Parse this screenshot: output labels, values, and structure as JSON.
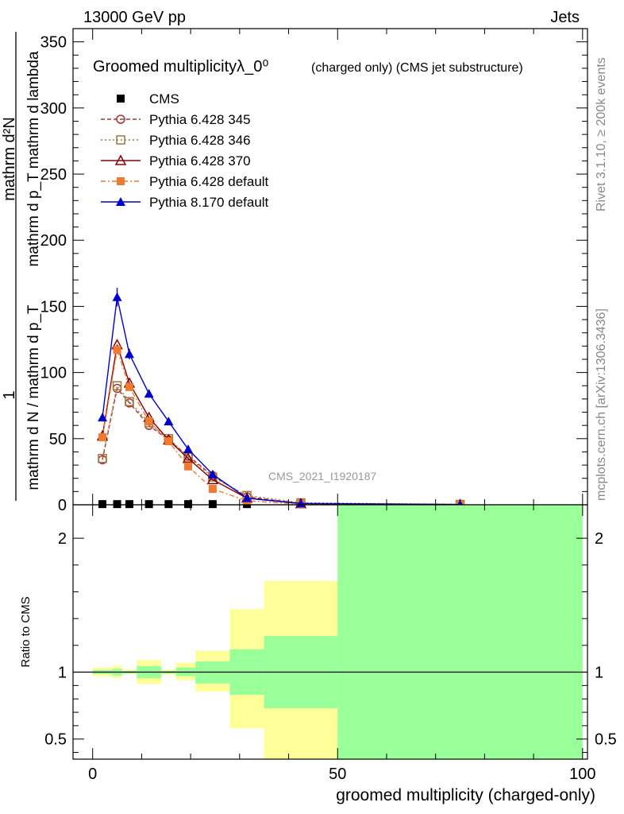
{
  "header": {
    "left": "13000 GeV pp",
    "right": "Jets"
  },
  "side_labels": {
    "rivet": "Rivet 3.1.10, ≥ 200k events",
    "mcplots": "mcplots.cern.ch [arXiv:1306.3436]"
  },
  "watermark": "CMS_2021_I1920187",
  "chart_data": [
    {
      "type": "line",
      "panel": "main",
      "title": "Groomed multiplicityλ_0⁰",
      "subtitle": "(charged only) (CMS jet substructure)",
      "xlabel": "groomed multiplicity (charged-only)",
      "ylabel": "1 / (mathrm d N / mathrm d p_T mathrm d p_T mathrm d lambda) · mathrm dN",
      "ylabel_numerator": "mathrm d²N",
      "ylabel_denominator": "mathrm d p_T mathrm d lambda",
      "ylabel_prefactor": "1",
      "ylabel_prefactor_den": "mathrm d N / mathrm d p_T",
      "xlim": [
        -4,
        101
      ],
      "ylim": [
        0,
        360
      ],
      "xticks": [
        0,
        50,
        100
      ],
      "yticks": [
        0,
        50,
        100,
        150,
        200,
        250,
        300,
        350
      ],
      "legend_position": "top-left",
      "series": [
        {
          "name": "CMS",
          "color": "#000000",
          "marker": "square-filled",
          "line": "none",
          "x": [
            2,
            5,
            7.5,
            11.5,
            15.5,
            19.5,
            24.5,
            31.5,
            42.5,
            75
          ],
          "y": [
            0.5,
            0.5,
            0.5,
            0.5,
            0.5,
            0.5,
            0.5,
            0.5,
            0.5,
            0.5
          ]
        },
        {
          "name": "Pythia 6.428 345",
          "color": "#b03030",
          "marker": "circle-open",
          "line": "dashed",
          "x": [
            2,
            5,
            7.5,
            11.5,
            15.5,
            19.5,
            24.5,
            31.5,
            42.5,
            75
          ],
          "y": [
            34,
            88,
            77,
            60,
            49,
            37,
            22,
            6,
            1,
            0.3
          ]
        },
        {
          "name": "Pythia 6.428 346",
          "color": "#9a7a40",
          "marker": "square-open",
          "line": "dotted",
          "x": [
            2,
            5,
            7.5,
            11.5,
            15.5,
            19.5,
            24.5,
            31.5,
            42.5,
            75
          ],
          "y": [
            35,
            90,
            78,
            62,
            50,
            36,
            21,
            7,
            1.5,
            0.3
          ]
        },
        {
          "name": "Pythia 6.428 370",
          "color": "#8b0000",
          "marker": "triangle-open",
          "line": "solid",
          "x": [
            2,
            5,
            7.5,
            11.5,
            15.5,
            19.5,
            24.5,
            31.5,
            42.5,
            75
          ],
          "y": [
            52,
            121,
            92,
            66,
            49,
            35,
            19,
            5,
            0.8,
            0.2
          ]
        },
        {
          "name": "Pythia 6.428 default",
          "color": "#f07a30",
          "marker": "square-filled",
          "line": "dash-dot",
          "x": [
            2,
            5,
            7.5,
            11.5,
            15.5,
            19.5,
            24.5,
            31.5,
            42.5,
            75
          ],
          "y": [
            51,
            117,
            89,
            63,
            48,
            29,
            12,
            3,
            0.5,
            0.1
          ]
        },
        {
          "name": "Pythia 8.170 default",
          "color": "#0000cc",
          "marker": "triangle-filled",
          "line": "solid",
          "x": [
            2,
            5,
            7.5,
            11.5,
            15.5,
            19.5,
            24.5,
            31.5,
            42.5,
            75
          ],
          "y": [
            66,
            157,
            114,
            84,
            63,
            42,
            23,
            5,
            1,
            0.2
          ],
          "yerr": [
            3,
            7,
            4,
            3,
            2,
            1.5,
            1,
            0.5,
            0.2,
            0.1
          ]
        }
      ]
    },
    {
      "type": "area",
      "panel": "ratio",
      "ylabel": "Ratio to CMS",
      "xlim": [
        -4,
        101
      ],
      "ylim": [
        0.35,
        2.25
      ],
      "xticks": [
        0,
        50,
        100
      ],
      "yticks": [
        0.5,
        1,
        2
      ],
      "reference_line": 1,
      "bands": {
        "edges": [
          0,
          4,
          6,
          9,
          14,
          17,
          21,
          28,
          35,
          50,
          100
        ],
        "inner_color": "#99ff99",
        "outer_color": "#ffff99",
        "inner_lo": [
          0.985,
          0.975,
          0.99,
          0.955,
          0.99,
          0.97,
          0.915,
          0.83,
          0.73,
          0.35
        ],
        "inner_hi": [
          1.015,
          1.025,
          1.01,
          1.045,
          1.01,
          1.035,
          1.08,
          1.17,
          1.27,
          2.25
        ],
        "outer_lo": [
          0.97,
          0.955,
          0.985,
          0.91,
          0.98,
          0.94,
          0.855,
          0.58,
          0.35,
          0.35
        ],
        "outer_hi": [
          1.035,
          1.05,
          1.02,
          1.09,
          1.02,
          1.07,
          1.16,
          1.47,
          1.68,
          2.25
        ]
      }
    }
  ]
}
